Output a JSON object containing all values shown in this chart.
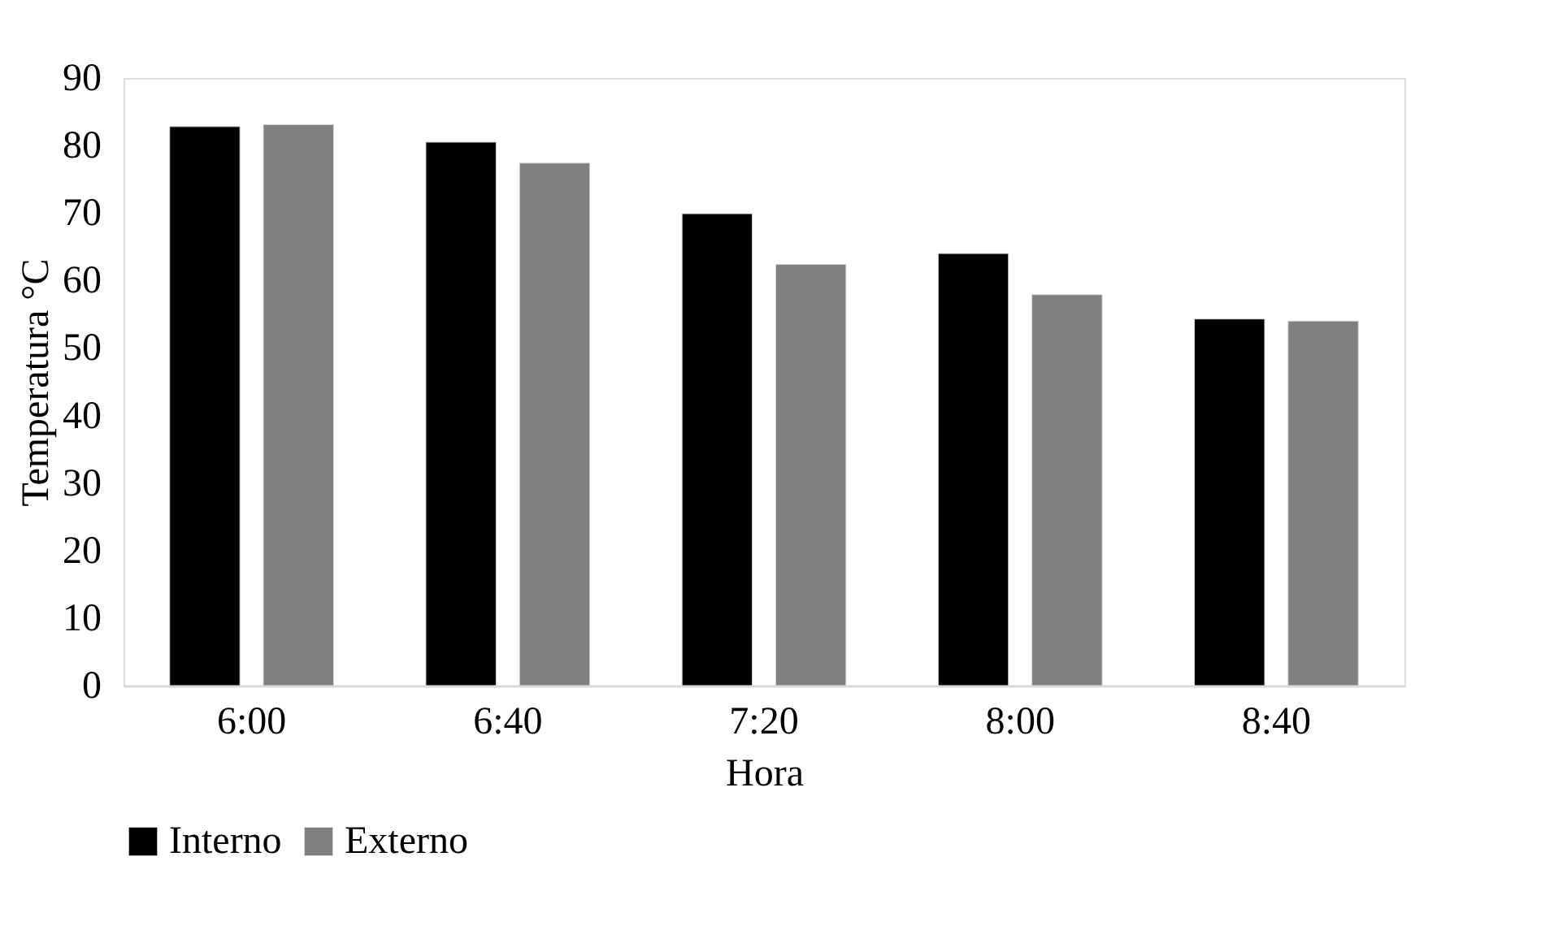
{
  "chart_data": {
    "type": "bar",
    "xlabel": "Hora",
    "ylabel": "Temperatura °C",
    "categories": [
      "6:00",
      "6:40",
      "7:20",
      "8:00",
      "8:40"
    ],
    "series": [
      {
        "name": "Interno",
        "color": "#000000",
        "values": [
          82.8,
          80.5,
          69.9,
          64.0,
          54.3
        ]
      },
      {
        "name": "Externo",
        "color": "#808080",
        "values": [
          83.1,
          77.4,
          62.4,
          57.9,
          54.0
        ]
      }
    ],
    "ylim": [
      0,
      90
    ],
    "yticks": [
      0,
      10,
      20,
      30,
      40,
      50,
      60,
      70,
      80,
      90
    ],
    "grid": false,
    "legend": "bottom"
  }
}
